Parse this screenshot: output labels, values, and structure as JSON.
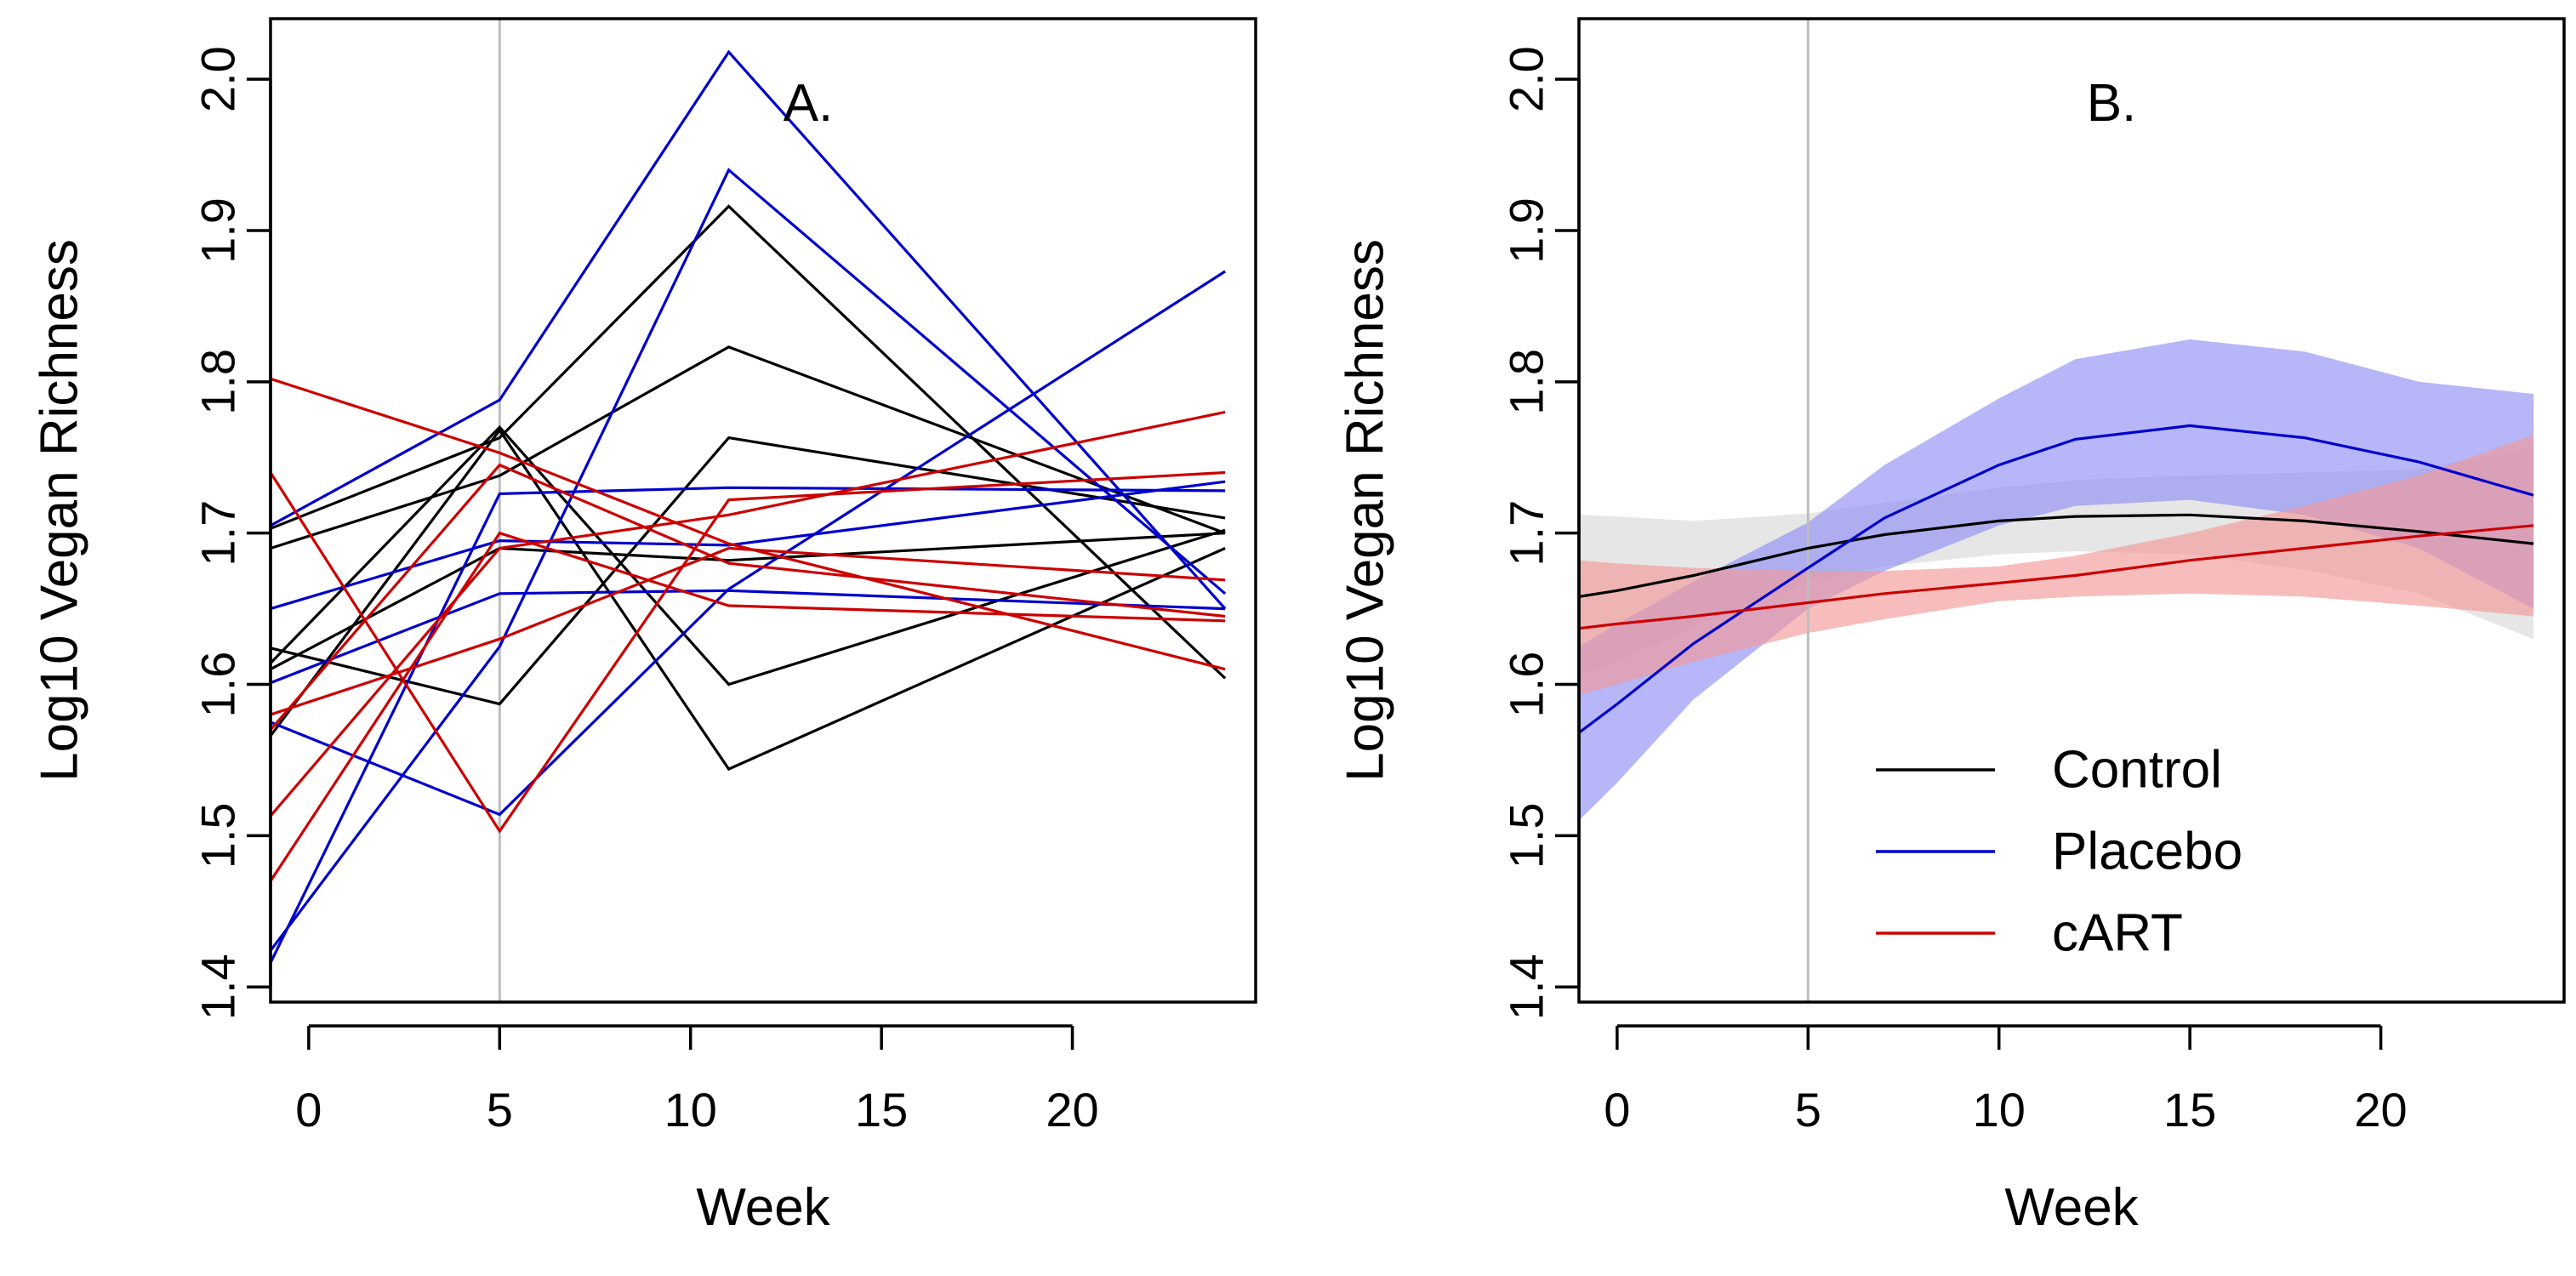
{
  "chart_data": [
    {
      "type": "line",
      "panel_label": "A.",
      "xlabel": "Week",
      "ylabel": "Log10 Vegan Richness",
      "xlim": [
        -1,
        24.8
      ],
      "ylim": [
        1.39,
        2.04
      ],
      "xticks": [
        0,
        5,
        10,
        15,
        20
      ],
      "yticks": [
        1.4,
        1.5,
        1.6,
        1.7,
        1.8,
        1.9,
        2.0
      ],
      "vline_x": 5,
      "colors": {
        "Control": "#000000",
        "Placebo": "#0000cc",
        "cART": "#cc0000"
      },
      "x": [
        -1,
        5,
        11,
        24
      ],
      "series": [
        {
          "group": "Control",
          "values": [
            1.703,
            1.763,
            1.916,
            1.604
          ]
        },
        {
          "group": "Control",
          "values": [
            1.69,
            1.738,
            1.823,
            1.7
          ]
        },
        {
          "group": "Control",
          "values": [
            1.624,
            1.587,
            1.763,
            1.71
          ]
        },
        {
          "group": "Control",
          "values": [
            1.614,
            1.77,
            1.6,
            1.702
          ]
        },
        {
          "group": "Control",
          "values": [
            1.566,
            1.768,
            1.544,
            1.69
          ]
        },
        {
          "group": "Control",
          "values": [
            1.61,
            1.69,
            1.682,
            1.7
          ]
        },
        {
          "group": "Placebo",
          "values": [
            1.705,
            1.788,
            2.018,
            1.65
          ]
        },
        {
          "group": "Placebo",
          "values": [
            1.424,
            1.625,
            1.94,
            1.66
          ]
        },
        {
          "group": "Placebo",
          "values": [
            1.416,
            1.726,
            1.73,
            1.728
          ]
        },
        {
          "group": "Placebo",
          "values": [
            1.65,
            1.695,
            1.692,
            1.734
          ]
        },
        {
          "group": "Placebo",
          "values": [
            1.575,
            1.514,
            1.663,
            1.873
          ]
        },
        {
          "group": "Placebo",
          "values": [
            1.601,
            1.66,
            1.662,
            1.65
          ]
        },
        {
          "group": "cART",
          "values": [
            1.802,
            1.753,
            1.693,
            1.61
          ]
        },
        {
          "group": "cART",
          "values": [
            1.74,
            1.503,
            1.722,
            1.74
          ]
        },
        {
          "group": "cART",
          "values": [
            1.57,
            1.745,
            1.68,
            1.645
          ]
        },
        {
          "group": "cART",
          "values": [
            1.513,
            1.69,
            1.712,
            1.78
          ]
        },
        {
          "group": "cART",
          "values": [
            1.47,
            1.7,
            1.652,
            1.642
          ]
        },
        {
          "group": "cART",
          "values": [
            1.58,
            1.63,
            1.69,
            1.669
          ]
        }
      ]
    },
    {
      "type": "line",
      "panel_label": "B.",
      "xlabel": "Week",
      "ylabel": "Log10 Vegan Richness",
      "xlim": [
        -1,
        24.8
      ],
      "ylim": [
        1.39,
        2.04
      ],
      "xticks": [
        0,
        5,
        10,
        15,
        20
      ],
      "yticks": [
        1.4,
        1.5,
        1.6,
        1.7,
        1.8,
        1.9,
        2.0
      ],
      "vline_x": 5,
      "legend_position": "bottom-right",
      "legend": [
        "Control",
        "Placebo",
        "cART"
      ],
      "colors": {
        "Control": "#000000",
        "Placebo": "#0000cc",
        "cART": "#cc0000"
      },
      "band_colors": {
        "Control": "#d8d8d8",
        "Placebo": "#8f8ff5",
        "cART": "#f39a9a"
      },
      "x": [
        -1,
        0,
        2,
        5,
        7,
        10,
        12,
        15,
        18,
        21,
        24
      ],
      "series": [
        {
          "name": "Control",
          "values": [
            1.658,
            1.662,
            1.672,
            1.69,
            1.699,
            1.708,
            1.711,
            1.712,
            1.708,
            1.701,
            1.693
          ],
          "lower": [
            1.605,
            1.615,
            1.638,
            1.668,
            1.678,
            1.686,
            1.688,
            1.686,
            1.676,
            1.66,
            1.63
          ],
          "upper": [
            1.712,
            1.711,
            1.708,
            1.713,
            1.72,
            1.73,
            1.735,
            1.738,
            1.74,
            1.742,
            1.757
          ]
        },
        {
          "name": "Placebo",
          "values": [
            1.568,
            1.587,
            1.627,
            1.677,
            1.71,
            1.745,
            1.762,
            1.771,
            1.763,
            1.747,
            1.725
          ],
          "lower": [
            1.51,
            1.535,
            1.59,
            1.65,
            1.675,
            1.705,
            1.718,
            1.722,
            1.712,
            1.69,
            1.65
          ],
          "upper": [
            1.625,
            1.64,
            1.668,
            1.707,
            1.745,
            1.789,
            1.815,
            1.828,
            1.82,
            1.8,
            1.792
          ]
        },
        {
          "name": "cART",
          "values": [
            1.637,
            1.64,
            1.645,
            1.654,
            1.66,
            1.667,
            1.672,
            1.682,
            1.69,
            1.698,
            1.705
          ],
          "lower": [
            1.593,
            1.6,
            1.615,
            1.634,
            1.643,
            1.655,
            1.658,
            1.66,
            1.658,
            1.652,
            1.645
          ],
          "upper": [
            1.682,
            1.68,
            1.677,
            1.675,
            1.675,
            1.678,
            1.685,
            1.7,
            1.718,
            1.738,
            1.765
          ]
        }
      ]
    }
  ]
}
